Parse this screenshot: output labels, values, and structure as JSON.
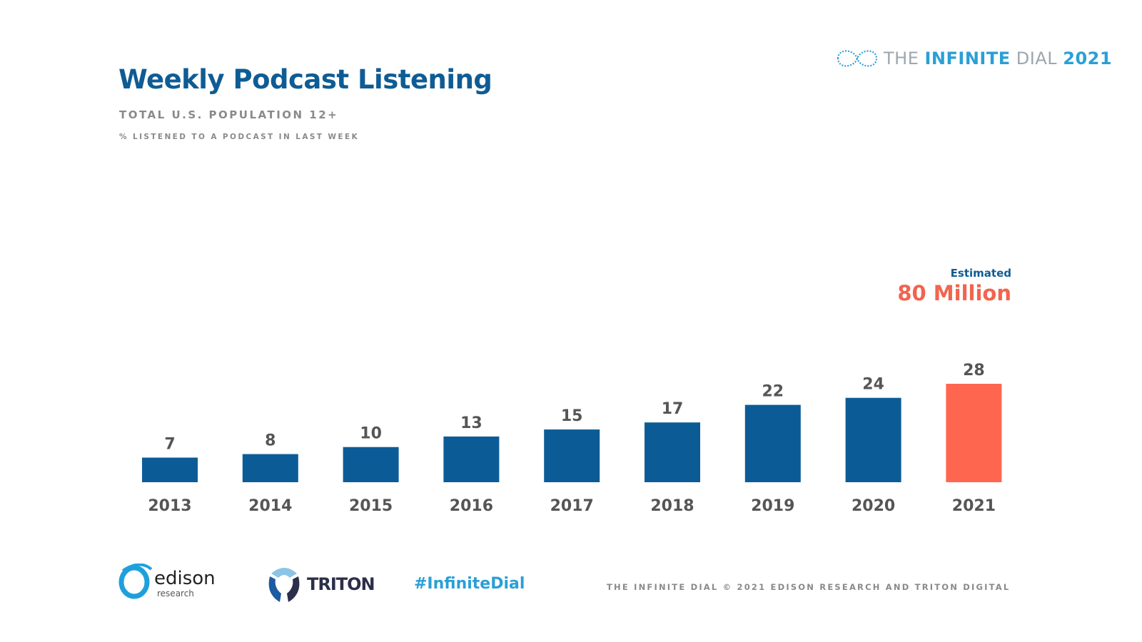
{
  "header": {
    "title": "Weekly Podcast Listening",
    "subtitle": "TOTAL U.S. POPULATION 12+",
    "note": "% LISTENED TO A PODCAST IN LAST WEEK",
    "logo": {
      "the": "THE ",
      "infinite": "INFINITE",
      "dial": " DIAL",
      "year": "2021"
    }
  },
  "annotation": {
    "label": "Estimated",
    "value": "80 Million"
  },
  "chart_data": {
    "type": "bar",
    "title": "Weekly Podcast Listening",
    "subtitle": "TOTAL U.S. POPULATION 12+",
    "ylabel": "% LISTENED TO A PODCAST IN LAST WEEK",
    "categories": [
      "2013",
      "2014",
      "2015",
      "2016",
      "2017",
      "2018",
      "2019",
      "2020",
      "2021"
    ],
    "values": [
      7,
      8,
      10,
      13,
      15,
      17,
      22,
      24,
      28
    ],
    "ylim": [
      0,
      28
    ],
    "grid": false,
    "colors": {
      "default": "#0b5c96",
      "highlight": "#ff6650"
    },
    "highlight_index": 8,
    "annotations": [
      {
        "category": "2021",
        "text": "Estimated 80 Million"
      }
    ]
  },
  "footer": {
    "edison": "edison",
    "edison_sub": "research",
    "triton": "TRITON",
    "hashtag": "#InfiniteDial",
    "copyright": "THE INFINITE DIAL   © 2021 EDISON RESEARCH AND TRITON DIGITAL"
  }
}
